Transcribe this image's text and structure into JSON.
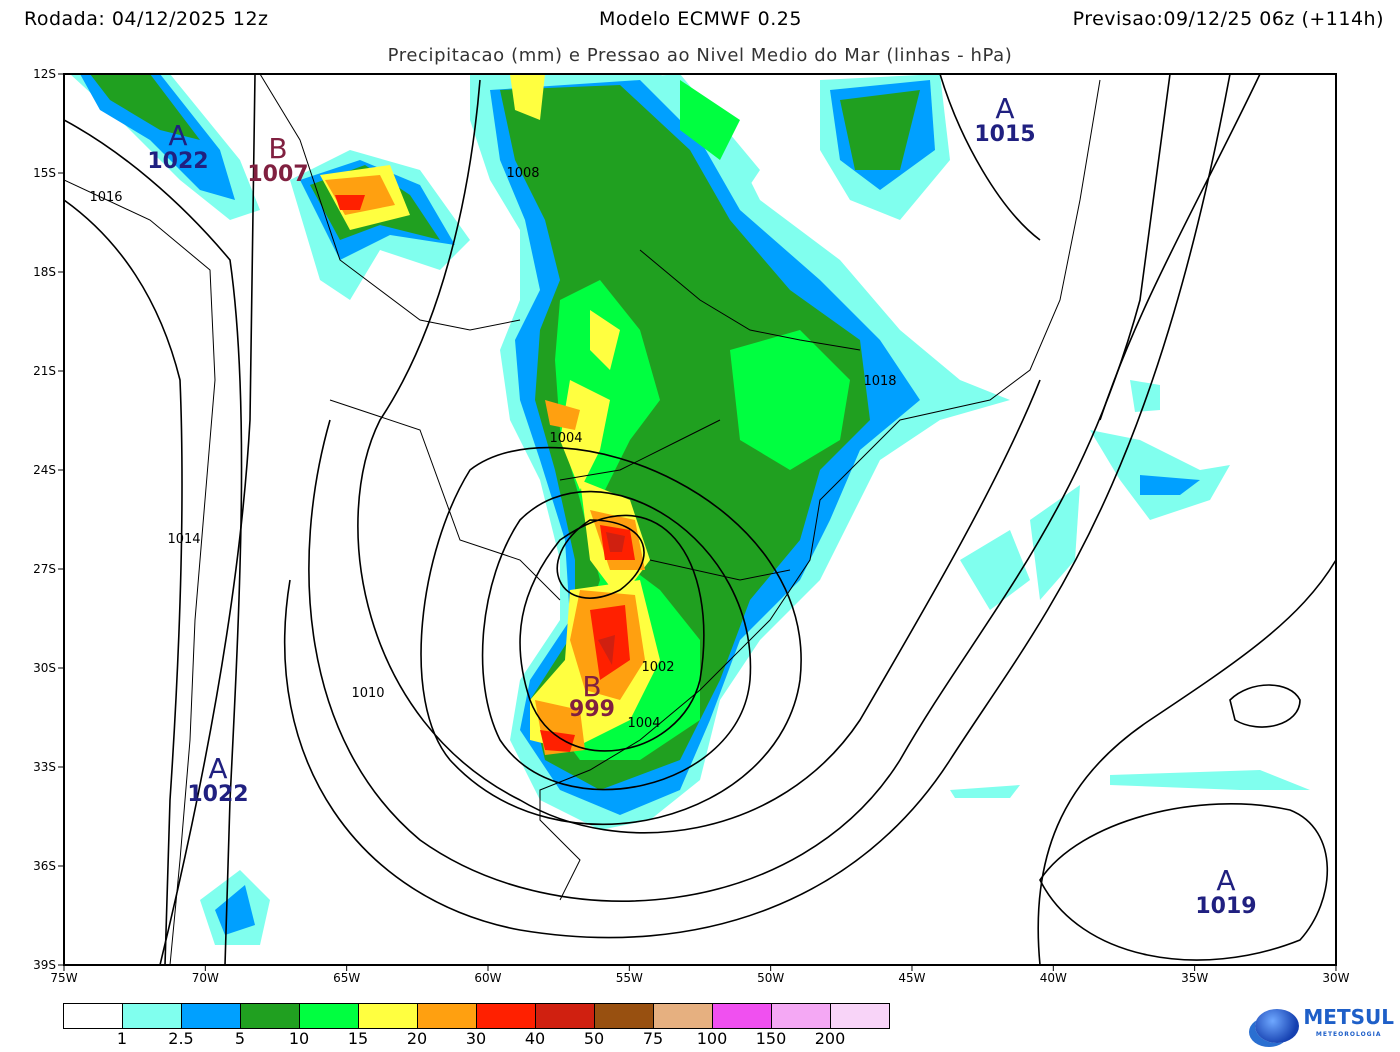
{
  "header": {
    "run": "Rodada: 04/12/2025 12z",
    "model": "Modelo ECMWF 0.25",
    "forecast": "Previsao:09/12/25 06z (+114h)",
    "title": "Precipitacao (mm) e Pressao ao Nivel Medio do Mar (linhas - hPa)"
  },
  "axes": {
    "lat_ticks": [
      "12S",
      "15S",
      "18S",
      "21S",
      "24S",
      "27S",
      "30S",
      "33S",
      "36S",
      "39S"
    ],
    "lon_ticks": [
      "75W",
      "70W",
      "65W",
      "60W",
      "55W",
      "50W",
      "45W",
      "40W",
      "35W",
      "30W"
    ]
  },
  "pressure_centers": [
    {
      "type": "A",
      "value": "1022"
    },
    {
      "type": "B",
      "value": "1007"
    },
    {
      "type": "A",
      "value": "1015"
    },
    {
      "type": "A",
      "value": "1022"
    },
    {
      "type": "B",
      "value": "999"
    },
    {
      "type": "A",
      "value": "1019"
    }
  ],
  "contour_labels": [
    "1016",
    "1008",
    "1004",
    "1014",
    "1010",
    "1002",
    "1004",
    "1018"
  ],
  "legend": {
    "colors": [
      "#ffffff",
      "#80ffee",
      "#00a0ff",
      "#20a020",
      "#00ff40",
      "#ffff40",
      "#ffa010",
      "#ff2000",
      "#d02010",
      "#985010",
      "#e6b080",
      "#f050f0",
      "#f4a8f4",
      "#f8d4f8"
    ],
    "labels": [
      "1",
      "2.5",
      "5",
      "10",
      "15",
      "20",
      "30",
      "40",
      "50",
      "75",
      "100",
      "150",
      "200"
    ]
  },
  "logo": {
    "name": "METSUL",
    "subtitle": "METEOROLOGIA"
  }
}
